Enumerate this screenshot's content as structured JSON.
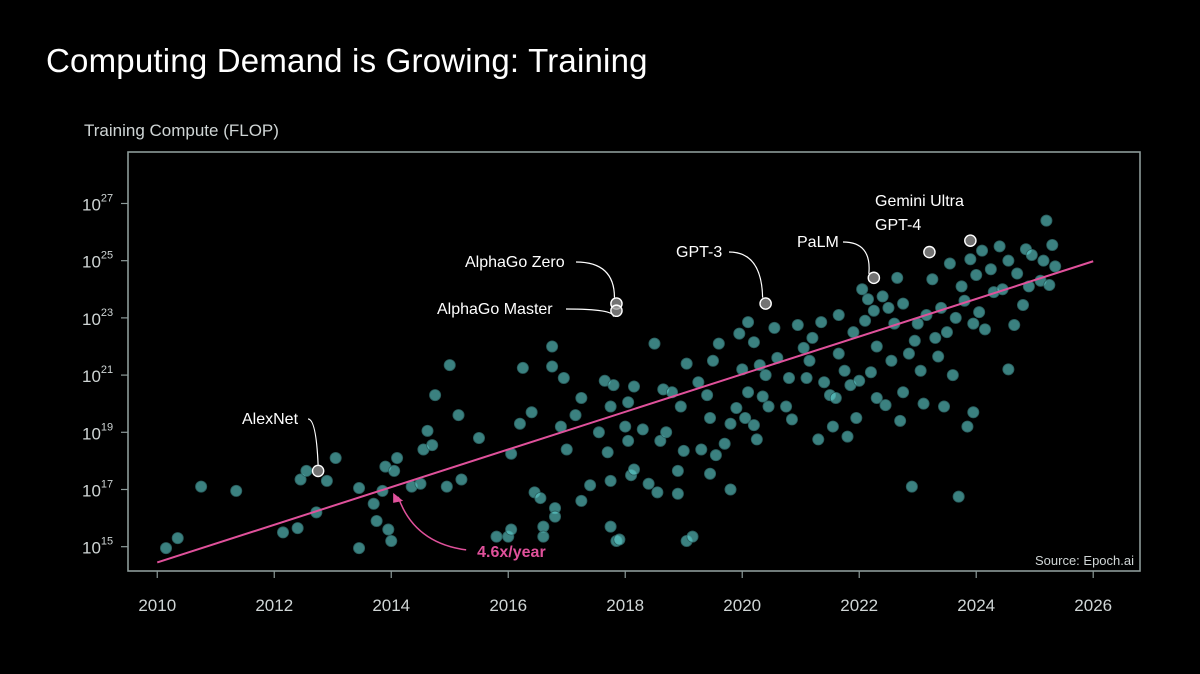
{
  "page": {
    "title": "Computing Demand is Growing: Training"
  },
  "colors": {
    "background": "#000000",
    "points": "#5fd0cf",
    "trend": "#e0519b",
    "frame": "#8c9a99",
    "text": "#ffffff",
    "axis_text": "#cfd5d5"
  },
  "chart_data": {
    "type": "scatter",
    "title": "Computing Demand is Growing: Training",
    "ylabel": "Training Compute (FLOP)",
    "xlabel": "",
    "y_scale": "log10",
    "xlim": [
      2009.5,
      2026.8
    ],
    "ylim_log10": [
      14.15,
      28.8
    ],
    "x_ticks": [
      2010,
      2012,
      2014,
      2016,
      2018,
      2020,
      2022,
      2024,
      2026
    ],
    "x_tick_labels": [
      "2010",
      "2012",
      "2014",
      "2016",
      "2018",
      "2020",
      "2022",
      "2024",
      "2026"
    ],
    "y_ticks": [
      {
        "base": "10",
        "exp": "15",
        "log10": 15
      },
      {
        "base": "10",
        "exp": "17",
        "log10": 17
      },
      {
        "base": "10",
        "exp": "19",
        "log10": 19
      },
      {
        "base": "10",
        "exp": "21",
        "log10": 21
      },
      {
        "base": "10",
        "exp": "23",
        "log10": 23
      },
      {
        "base": "10",
        "exp": "25",
        "log10": 25
      },
      {
        "base": "10",
        "exp": "27",
        "log10": 27
      }
    ],
    "source": "Source: Epoch.ai",
    "trend": {
      "label": "4.6x/year",
      "start": {
        "x": 2010.0,
        "log10y": 14.45
      },
      "end": {
        "x": 2026.0,
        "log10y": 24.98
      }
    },
    "highlighted": [
      {
        "name": "AlexNet",
        "x": 2012.75,
        "log10y": 17.65
      },
      {
        "name": "AlphaGo Zero",
        "x": 2017.85,
        "log10y": 23.5
      },
      {
        "name": "AlphaGo Master",
        "x": 2017.85,
        "log10y": 23.25
      },
      {
        "name": "GPT-3",
        "x": 2020.4,
        "log10y": 23.5
      },
      {
        "name": "PaLM",
        "x": 2022.25,
        "log10y": 24.4
      },
      {
        "name": "GPT-4",
        "x": 2023.2,
        "log10y": 25.3
      },
      {
        "name": "Gemini Ultra",
        "x": 2023.9,
        "log10y": 25.7
      }
    ],
    "points": [
      [
        2010.15,
        14.95
      ],
      [
        2010.35,
        15.3
      ],
      [
        2010.75,
        17.1
      ],
      [
        2011.35,
        16.95
      ],
      [
        2012.15,
        15.5
      ],
      [
        2012.4,
        15.65
      ],
      [
        2012.45,
        17.35
      ],
      [
        2012.55,
        17.65
      ],
      [
        2012.72,
        16.2
      ],
      [
        2012.9,
        17.3
      ],
      [
        2013.05,
        18.1
      ],
      [
        2013.45,
        17.05
      ],
      [
        2013.45,
        14.95
      ],
      [
        2013.7,
        16.5
      ],
      [
        2013.75,
        15.9
      ],
      [
        2013.85,
        16.95
      ],
      [
        2013.9,
        17.8
      ],
      [
        2013.95,
        15.6
      ],
      [
        2014.0,
        15.2
      ],
      [
        2014.05,
        17.65
      ],
      [
        2014.1,
        18.1
      ],
      [
        2014.35,
        17.1
      ],
      [
        2014.5,
        17.2
      ],
      [
        2014.55,
        18.4
      ],
      [
        2014.62,
        19.05
      ],
      [
        2014.7,
        18.55
      ],
      [
        2014.75,
        20.3
      ],
      [
        2014.95,
        17.1
      ],
      [
        2015.0,
        21.35
      ],
      [
        2015.15,
        19.6
      ],
      [
        2015.2,
        17.35
      ],
      [
        2015.5,
        18.8
      ],
      [
        2015.8,
        15.35
      ],
      [
        2016.0,
        15.35
      ],
      [
        2016.05,
        18.25
      ],
      [
        2016.05,
        15.6
      ],
      [
        2016.2,
        19.3
      ],
      [
        2016.25,
        21.25
      ],
      [
        2016.4,
        19.7
      ],
      [
        2016.45,
        16.9
      ],
      [
        2016.55,
        16.7
      ],
      [
        2016.6,
        15.7
      ],
      [
        2016.6,
        15.35
      ],
      [
        2016.75,
        21.3
      ],
      [
        2016.75,
        22.0
      ],
      [
        2016.8,
        16.35
      ],
      [
        2016.8,
        16.05
      ],
      [
        2016.9,
        19.2
      ],
      [
        2016.95,
        20.9
      ],
      [
        2017.0,
        18.4
      ],
      [
        2017.15,
        19.6
      ],
      [
        2017.25,
        20.2
      ],
      [
        2017.25,
        16.6
      ],
      [
        2017.4,
        17.15
      ],
      [
        2017.55,
        19.0
      ],
      [
        2017.65,
        20.8
      ],
      [
        2017.7,
        18.3
      ],
      [
        2017.75,
        17.3
      ],
      [
        2017.75,
        19.9
      ],
      [
        2017.75,
        15.7
      ],
      [
        2017.8,
        20.65
      ],
      [
        2017.85,
        15.2
      ],
      [
        2017.9,
        15.25
      ],
      [
        2018.0,
        19.2
      ],
      [
        2018.05,
        18.7
      ],
      [
        2018.05,
        20.05
      ],
      [
        2018.1,
        17.5
      ],
      [
        2018.15,
        17.7
      ],
      [
        2018.15,
        20.6
      ],
      [
        2018.3,
        19.1
      ],
      [
        2018.4,
        17.2
      ],
      [
        2018.5,
        22.1
      ],
      [
        2018.55,
        16.9
      ],
      [
        2018.6,
        18.7
      ],
      [
        2018.65,
        20.5
      ],
      [
        2018.7,
        19.0
      ],
      [
        2018.8,
        20.4
      ],
      [
        2018.9,
        16.85
      ],
      [
        2018.9,
        17.65
      ],
      [
        2018.95,
        19.9
      ],
      [
        2019.0,
        18.35
      ],
      [
        2019.05,
        21.4
      ],
      [
        2019.05,
        15.2
      ],
      [
        2019.15,
        15.35
      ],
      [
        2019.25,
        20.75
      ],
      [
        2019.3,
        18.4
      ],
      [
        2019.4,
        20.3
      ],
      [
        2019.45,
        19.5
      ],
      [
        2019.45,
        17.55
      ],
      [
        2019.5,
        21.5
      ],
      [
        2019.55,
        18.2
      ],
      [
        2019.6,
        22.1
      ],
      [
        2019.7,
        18.6
      ],
      [
        2019.8,
        19.3
      ],
      [
        2019.8,
        17.0
      ],
      [
        2019.9,
        19.85
      ],
      [
        2019.95,
        22.45
      ],
      [
        2020.0,
        21.2
      ],
      [
        2020.05,
        19.5
      ],
      [
        2020.1,
        20.4
      ],
      [
        2020.1,
        22.85
      ],
      [
        2020.2,
        19.25
      ],
      [
        2020.2,
        22.15
      ],
      [
        2020.25,
        18.75
      ],
      [
        2020.3,
        21.35
      ],
      [
        2020.35,
        20.25
      ],
      [
        2020.4,
        21.0
      ],
      [
        2020.45,
        19.9
      ],
      [
        2020.55,
        22.65
      ],
      [
        2020.6,
        21.6
      ],
      [
        2020.75,
        19.9
      ],
      [
        2020.8,
        20.9
      ],
      [
        2020.85,
        19.45
      ],
      [
        2020.95,
        22.75
      ],
      [
        2021.05,
        21.95
      ],
      [
        2021.1,
        20.9
      ],
      [
        2021.15,
        21.5
      ],
      [
        2021.2,
        22.3
      ],
      [
        2021.3,
        18.75
      ],
      [
        2021.35,
        22.85
      ],
      [
        2021.4,
        20.75
      ],
      [
        2021.5,
        20.3
      ],
      [
        2021.55,
        19.2
      ],
      [
        2021.6,
        20.2
      ],
      [
        2021.65,
        23.1
      ],
      [
        2021.65,
        21.75
      ],
      [
        2021.75,
        21.15
      ],
      [
        2021.8,
        18.85
      ],
      [
        2021.85,
        20.65
      ],
      [
        2021.9,
        22.5
      ],
      [
        2021.95,
        19.5
      ],
      [
        2022.0,
        20.8
      ],
      [
        2022.05,
        24.0
      ],
      [
        2022.1,
        22.9
      ],
      [
        2022.15,
        23.65
      ],
      [
        2022.2,
        21.1
      ],
      [
        2022.25,
        23.25
      ],
      [
        2022.3,
        20.2
      ],
      [
        2022.3,
        22.0
      ],
      [
        2022.4,
        23.75
      ],
      [
        2022.45,
        19.95
      ],
      [
        2022.5,
        23.35
      ],
      [
        2022.55,
        21.5
      ],
      [
        2022.6,
        22.8
      ],
      [
        2022.65,
        24.4
      ],
      [
        2022.7,
        19.4
      ],
      [
        2022.75,
        20.4
      ],
      [
        2022.75,
        23.5
      ],
      [
        2022.85,
        21.75
      ],
      [
        2022.9,
        17.1
      ],
      [
        2022.95,
        22.2
      ],
      [
        2023.0,
        22.8
      ],
      [
        2023.05,
        21.15
      ],
      [
        2023.1,
        20.0
      ],
      [
        2023.15,
        23.1
      ],
      [
        2023.25,
        24.35
      ],
      [
        2023.3,
        22.3
      ],
      [
        2023.35,
        21.65
      ],
      [
        2023.4,
        23.35
      ],
      [
        2023.45,
        19.9
      ],
      [
        2023.5,
        22.5
      ],
      [
        2023.55,
        24.9
      ],
      [
        2023.6,
        21.0
      ],
      [
        2023.65,
        23.0
      ],
      [
        2023.7,
        16.75
      ],
      [
        2023.75,
        24.1
      ],
      [
        2023.8,
        23.6
      ],
      [
        2023.85,
        19.2
      ],
      [
        2023.9,
        25.05
      ],
      [
        2023.95,
        22.8
      ],
      [
        2023.95,
        19.7
      ],
      [
        2024.0,
        24.5
      ],
      [
        2024.05,
        23.2
      ],
      [
        2024.1,
        25.35
      ],
      [
        2024.15,
        22.6
      ],
      [
        2024.25,
        24.7
      ],
      [
        2024.3,
        23.9
      ],
      [
        2024.4,
        25.5
      ],
      [
        2024.45,
        24.0
      ],
      [
        2024.55,
        21.2
      ],
      [
        2024.55,
        25.0
      ],
      [
        2024.65,
        22.75
      ],
      [
        2024.7,
        24.55
      ],
      [
        2024.8,
        23.45
      ],
      [
        2024.85,
        25.4
      ],
      [
        2024.9,
        24.1
      ],
      [
        2024.95,
        25.2
      ],
      [
        2025.1,
        24.3
      ],
      [
        2025.15,
        25.0
      ],
      [
        2025.2,
        26.4
      ],
      [
        2025.25,
        24.15
      ],
      [
        2025.3,
        25.55
      ],
      [
        2025.35,
        24.8
      ]
    ]
  }
}
